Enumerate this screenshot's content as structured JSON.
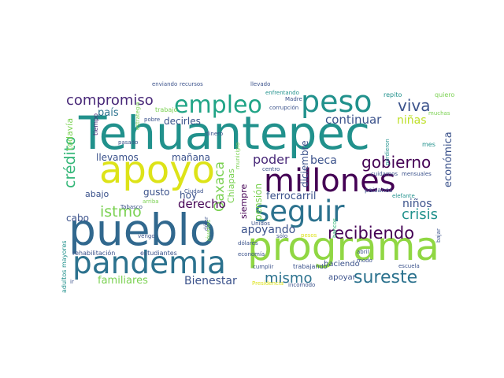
{
  "palette": {
    "dark_purple": "#440154",
    "indigo": "#3b528b",
    "blue": "#31688e",
    "teal": "#21918c",
    "green": "#35b779",
    "lime": "#90d743",
    "yellow": "#dde318"
  },
  "words": [
    {
      "text": "Tehuantepec",
      "color": "#21918c"
    },
    {
      "text": "pueblo",
      "color": "#31688e"
    },
    {
      "text": "programa",
      "color": "#90d743"
    },
    {
      "text": "apoyo",
      "color": "#dde318"
    },
    {
      "text": "pandemia",
      "color": "#2c728e"
    },
    {
      "text": "millones",
      "color": "#440154"
    },
    {
      "text": "seguir",
      "color": "#2c728e"
    },
    {
      "text": "peso",
      "color": "#21918c"
    },
    {
      "text": "empleo",
      "color": "#20a486"
    },
    {
      "text": "recibiendo",
      "color": "#440154"
    },
    {
      "text": "sureste",
      "color": "#2c728e"
    },
    {
      "text": "compromiso",
      "color": "#482878"
    },
    {
      "text": "gobierno",
      "color": "#440154"
    },
    {
      "text": "viva",
      "color": "#3b528b"
    },
    {
      "text": "istmo",
      "color": "#7ad151"
    },
    {
      "text": "crédito",
      "color": "#35b779"
    },
    {
      "text": "crisis",
      "color": "#21918c"
    },
    {
      "text": "mismo",
      "color": "#2c728e"
    },
    {
      "text": "continuar",
      "color": "#3b528b"
    },
    {
      "text": "niñas",
      "color": "#bddf26"
    },
    {
      "text": "poder",
      "color": "#482878"
    },
    {
      "text": "beca",
      "color": "#3b528b"
    },
    {
      "text": "Oaxaca",
      "color": "#7ad151"
    },
    {
      "text": "derecho",
      "color": "#440154"
    },
    {
      "text": "apoyando",
      "color": "#3b528b"
    },
    {
      "text": "ferrocarril",
      "color": "#3b528b"
    },
    {
      "text": "niños",
      "color": "#3b528b"
    },
    {
      "text": "económica",
      "color": "#3b528b"
    },
    {
      "text": "Bienestar",
      "color": "#3b528b"
    },
    {
      "text": "familiares",
      "color": "#7ad151"
    },
    {
      "text": "país",
      "color": "#2c728e"
    },
    {
      "text": "decirles",
      "color": "#3b528b"
    },
    {
      "text": "llevamos",
      "color": "#3b528b"
    },
    {
      "text": "mañana",
      "color": "#3b528b"
    },
    {
      "text": "abajo",
      "color": "#3b528b"
    },
    {
      "text": "gusto",
      "color": "#3b528b"
    },
    {
      "text": "hoy",
      "color": "#3b528b"
    },
    {
      "text": "cabo",
      "color": "#3b528b"
    },
    {
      "text": "pensión",
      "color": "#7ad151"
    },
    {
      "text": "diciembre",
      "color": "#3b528b"
    },
    {
      "text": "todavía",
      "color": "#7ad151"
    },
    {
      "text": "Chiapas",
      "color": "#7ad151"
    },
    {
      "text": "siempre",
      "color": "#440154"
    },
    {
      "text": "haciendo",
      "color": "#3b528b"
    },
    {
      "text": "apoyar",
      "color": "#3b528b"
    },
    {
      "text": "rehabilitación",
      "color": "#3b528b"
    },
    {
      "text": "estudiantes",
      "color": "#3b528b"
    },
    {
      "text": "adultos mayores",
      "color": "#21918c"
    },
    {
      "text": "tiempo",
      "color": "#482878"
    },
    {
      "text": "trabajo",
      "color": "#7ad151"
    },
    {
      "text": "enviando",
      "color": "#3b528b"
    },
    {
      "text": "recursos",
      "color": "#3b528b"
    },
    {
      "text": "llevado",
      "color": "#3b528b"
    },
    {
      "text": "enfrentando",
      "color": "#21918c"
    },
    {
      "text": "corrupción",
      "color": "#3b528b"
    },
    {
      "text": "Madre",
      "color": "#3b528b"
    },
    {
      "text": "repito",
      "color": "#21918c"
    },
    {
      "text": "quiero",
      "color": "#7ad151"
    },
    {
      "text": "muchas",
      "color": "#7ad151"
    },
    {
      "text": "mes",
      "color": "#21918c"
    },
    {
      "text": "dinero",
      "color": "#3b528b"
    },
    {
      "text": "municipio",
      "color": "#7ad151"
    },
    {
      "text": "estrategia",
      "color": "#7ad151"
    },
    {
      "text": "pobre",
      "color": "#3b528b"
    },
    {
      "text": "pasado",
      "color": "#3b528b"
    },
    {
      "text": "perdieron",
      "color": "#21918c"
    },
    {
      "text": "dólares",
      "color": "#3b528b"
    },
    {
      "text": "centro",
      "color": "#3b528b"
    },
    {
      "text": "cuidarnos",
      "color": "#3b528b"
    },
    {
      "text": "mensuales",
      "color": "#3b528b"
    },
    {
      "text": "paisanos",
      "color": "#3b528b"
    },
    {
      "text": "elefante",
      "color": "#21918c"
    },
    {
      "text": "bajar",
      "color": "#3b528b"
    },
    {
      "text": "Ciudad",
      "color": "#3b528b"
    },
    {
      "text": "arriba",
      "color": "#7ad151"
    },
    {
      "text": "Tabasco",
      "color": "#3b528b"
    },
    {
      "text": "vengo",
      "color": "#3b528b"
    },
    {
      "text": "dólar",
      "color": "#3b528b"
    },
    {
      "text": "jóvenes",
      "color": "#7ad151"
    },
    {
      "text": "Unidos",
      "color": "#3b528b"
    },
    {
      "text": "sólo",
      "color": "#3b528b"
    },
    {
      "text": "pesos",
      "color": "#dde318"
    },
    {
      "text": "economía",
      "color": "#3b528b"
    },
    {
      "text": "bancos",
      "color": "#35b779"
    },
    {
      "text": "cumplir",
      "color": "#3b528b"
    },
    {
      "text": "trabajando",
      "color": "#3b528b"
    },
    {
      "text": "escuela",
      "color": "#3b528b"
    },
    {
      "text": "abril",
      "color": "#3b528b"
    },
    {
      "text": "modo",
      "color": "#3b528b"
    },
    {
      "text": "Presidencia",
      "color": "#dde318"
    },
    {
      "text": "incomodo",
      "color": "#3b528b"
    },
    {
      "text": "ir",
      "color": "#3b528b"
    }
  ]
}
